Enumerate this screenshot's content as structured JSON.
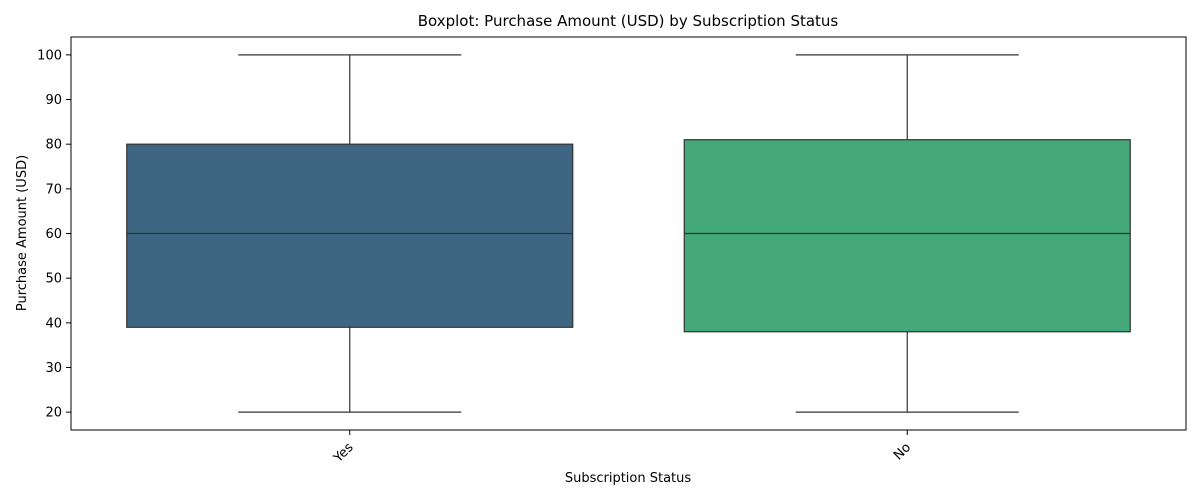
{
  "chart_data": {
    "type": "box",
    "title": "Boxplot: Purchase Amount (USD) by Subscription Status",
    "xlabel": "Subscription Status",
    "ylabel": "Purchase Amount (USD)",
    "ylim": [
      16,
      104
    ],
    "yticks": [
      20,
      30,
      40,
      50,
      60,
      70,
      80,
      90,
      100
    ],
    "grid": false,
    "categories": [
      "Yes",
      "No"
    ],
    "boxes": [
      {
        "category": "Yes",
        "whisker_low": 20,
        "q1": 39,
        "median": 60,
        "q3": 80,
        "whisker_high": 100,
        "color": "#3e6683"
      },
      {
        "category": "No",
        "whisker_low": 20,
        "q1": 38,
        "median": 60,
        "q3": 81,
        "whisker_high": 100,
        "color": "#45a878"
      }
    ]
  }
}
